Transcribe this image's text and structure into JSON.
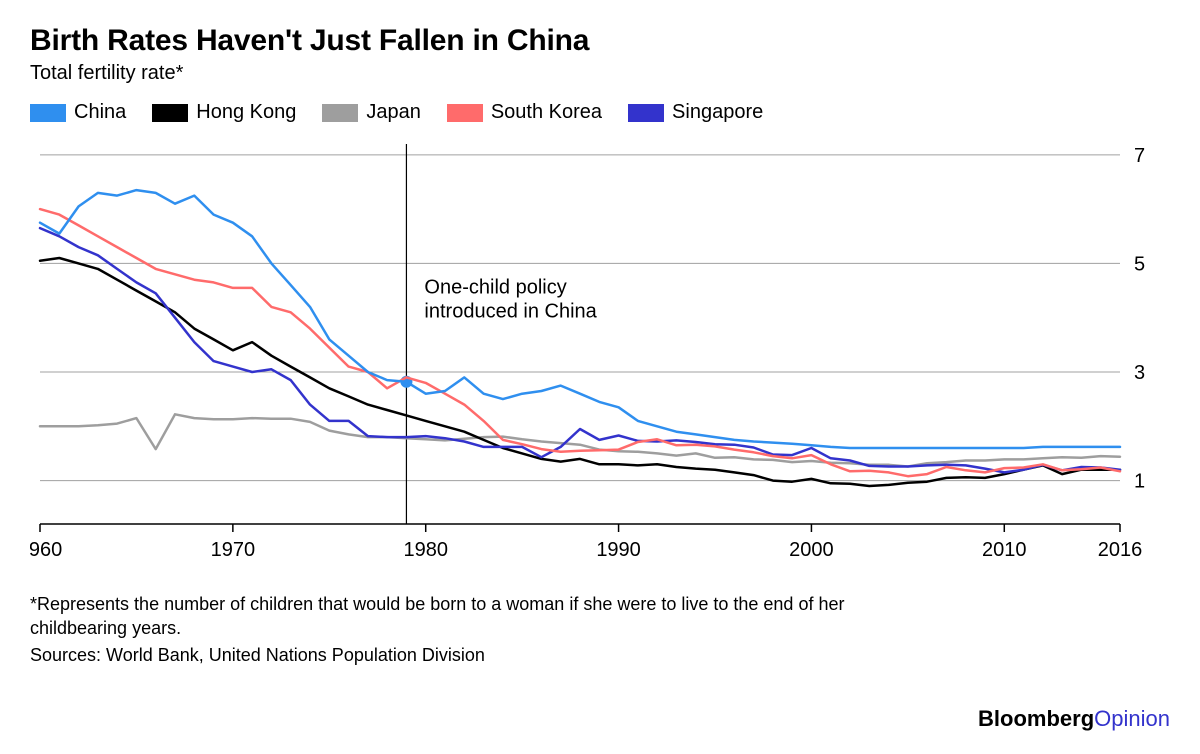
{
  "title": "Birth Rates Haven't Just Fallen in China",
  "subtitle": "Total fertility rate*",
  "footnote": "*Represents the number of children that would be born to a woman if she were to live to the end of her childbearing years.",
  "sources": "Sources: World Bank, United Nations Population Division",
  "brand_main": "Bloomberg",
  "brand_sub": "Opinion",
  "annotation": {
    "year": 1979,
    "label_line1": "One-child policy",
    "label_line2": "introduced in China",
    "marker_y": 2.82
  },
  "chart": {
    "type": "line",
    "background_color": "#ffffff",
    "grid_color": "#a0a0a0",
    "axis_color": "#000000",
    "text_color": "#000000",
    "label_fontsize": 20,
    "annotation_fontsize": 20,
    "line_width": 2.5,
    "marker_radius": 6,
    "marker_color": "#2f8fef",
    "annotation_line_color": "#000000",
    "x": {
      "min": 1960,
      "max": 2016,
      "ticks": [
        1960,
        1970,
        1980,
        1990,
        2000,
        2010,
        2016
      ]
    },
    "y": {
      "min": 0.2,
      "max": 7.2,
      "ticks": [
        1,
        3,
        5,
        7
      ]
    },
    "series": [
      {
        "name": "China",
        "color": "#2f8fef",
        "data": [
          [
            1960,
            5.75
          ],
          [
            1961,
            5.55
          ],
          [
            1962,
            6.05
          ],
          [
            1963,
            6.3
          ],
          [
            1964,
            6.25
          ],
          [
            1965,
            6.35
          ],
          [
            1966,
            6.3
          ],
          [
            1967,
            6.1
          ],
          [
            1968,
            6.25
          ],
          [
            1969,
            5.9
          ],
          [
            1970,
            5.75
          ],
          [
            1971,
            5.5
          ],
          [
            1972,
            5.0
          ],
          [
            1973,
            4.6
          ],
          [
            1974,
            4.2
          ],
          [
            1975,
            3.6
          ],
          [
            1976,
            3.3
          ],
          [
            1977,
            3.0
          ],
          [
            1978,
            2.85
          ],
          [
            1979,
            2.82
          ],
          [
            1980,
            2.6
          ],
          [
            1981,
            2.65
          ],
          [
            1982,
            2.9
          ],
          [
            1983,
            2.6
          ],
          [
            1984,
            2.5
          ],
          [
            1985,
            2.6
          ],
          [
            1986,
            2.65
          ],
          [
            1987,
            2.75
          ],
          [
            1988,
            2.6
          ],
          [
            1989,
            2.45
          ],
          [
            1990,
            2.35
          ],
          [
            1991,
            2.1
          ],
          [
            1992,
            2.0
          ],
          [
            1993,
            1.9
          ],
          [
            1994,
            1.85
          ],
          [
            1995,
            1.8
          ],
          [
            1996,
            1.75
          ],
          [
            1997,
            1.72
          ],
          [
            1998,
            1.7
          ],
          [
            1999,
            1.68
          ],
          [
            2000,
            1.65
          ],
          [
            2001,
            1.62
          ],
          [
            2002,
            1.6
          ],
          [
            2003,
            1.6
          ],
          [
            2004,
            1.6
          ],
          [
            2005,
            1.6
          ],
          [
            2006,
            1.6
          ],
          [
            2007,
            1.6
          ],
          [
            2008,
            1.6
          ],
          [
            2009,
            1.6
          ],
          [
            2010,
            1.6
          ],
          [
            2011,
            1.6
          ],
          [
            2012,
            1.62
          ],
          [
            2013,
            1.62
          ],
          [
            2014,
            1.62
          ],
          [
            2015,
            1.62
          ],
          [
            2016,
            1.62
          ]
        ]
      },
      {
        "name": "Hong Kong",
        "color": "#000000",
        "data": [
          [
            1960,
            5.05
          ],
          [
            1961,
            5.1
          ],
          [
            1962,
            5.0
          ],
          [
            1963,
            4.9
          ],
          [
            1964,
            4.7
          ],
          [
            1965,
            4.5
          ],
          [
            1966,
            4.3
          ],
          [
            1967,
            4.1
          ],
          [
            1968,
            3.8
          ],
          [
            1969,
            3.6
          ],
          [
            1970,
            3.4
          ],
          [
            1971,
            3.55
          ],
          [
            1972,
            3.3
          ],
          [
            1973,
            3.1
          ],
          [
            1974,
            2.9
          ],
          [
            1975,
            2.7
          ],
          [
            1976,
            2.55
          ],
          [
            1977,
            2.4
          ],
          [
            1978,
            2.3
          ],
          [
            1979,
            2.2
          ],
          [
            1980,
            2.1
          ],
          [
            1981,
            2.0
          ],
          [
            1982,
            1.9
          ],
          [
            1983,
            1.75
          ],
          [
            1984,
            1.6
          ],
          [
            1985,
            1.5
          ],
          [
            1986,
            1.4
          ],
          [
            1987,
            1.35
          ],
          [
            1988,
            1.4
          ],
          [
            1989,
            1.3
          ],
          [
            1990,
            1.3
          ],
          [
            1991,
            1.28
          ],
          [
            1992,
            1.3
          ],
          [
            1993,
            1.25
          ],
          [
            1994,
            1.22
          ],
          [
            1995,
            1.2
          ],
          [
            1996,
            1.15
          ],
          [
            1997,
            1.1
          ],
          [
            1998,
            1.0
          ],
          [
            1999,
            0.98
          ],
          [
            2000,
            1.03
          ],
          [
            2001,
            0.95
          ],
          [
            2002,
            0.94
          ],
          [
            2003,
            0.9
          ],
          [
            2004,
            0.92
          ],
          [
            2005,
            0.96
          ],
          [
            2006,
            0.98
          ],
          [
            2007,
            1.05
          ],
          [
            2008,
            1.06
          ],
          [
            2009,
            1.05
          ],
          [
            2010,
            1.12
          ],
          [
            2011,
            1.2
          ],
          [
            2012,
            1.28
          ],
          [
            2013,
            1.12
          ],
          [
            2014,
            1.2
          ],
          [
            2015,
            1.2
          ],
          [
            2016,
            1.2
          ]
        ]
      },
      {
        "name": "Japan",
        "color": "#9e9e9e",
        "data": [
          [
            1960,
            2.0
          ],
          [
            1961,
            2.0
          ],
          [
            1962,
            2.0
          ],
          [
            1963,
            2.02
          ],
          [
            1964,
            2.05
          ],
          [
            1965,
            2.15
          ],
          [
            1966,
            1.58
          ],
          [
            1967,
            2.22
          ],
          [
            1968,
            2.15
          ],
          [
            1969,
            2.13
          ],
          [
            1970,
            2.13
          ],
          [
            1971,
            2.15
          ],
          [
            1972,
            2.14
          ],
          [
            1973,
            2.14
          ],
          [
            1974,
            2.08
          ],
          [
            1975,
            1.92
          ],
          [
            1976,
            1.85
          ],
          [
            1977,
            1.8
          ],
          [
            1978,
            1.8
          ],
          [
            1979,
            1.78
          ],
          [
            1980,
            1.76
          ],
          [
            1981,
            1.74
          ],
          [
            1982,
            1.77
          ],
          [
            1983,
            1.8
          ],
          [
            1984,
            1.81
          ],
          [
            1985,
            1.76
          ],
          [
            1986,
            1.72
          ],
          [
            1987,
            1.69
          ],
          [
            1988,
            1.66
          ],
          [
            1989,
            1.57
          ],
          [
            1990,
            1.54
          ],
          [
            1991,
            1.53
          ],
          [
            1992,
            1.5
          ],
          [
            1993,
            1.46
          ],
          [
            1994,
            1.5
          ],
          [
            1995,
            1.42
          ],
          [
            1996,
            1.43
          ],
          [
            1997,
            1.39
          ],
          [
            1998,
            1.38
          ],
          [
            1999,
            1.34
          ],
          [
            2000,
            1.36
          ],
          [
            2001,
            1.33
          ],
          [
            2002,
            1.32
          ],
          [
            2003,
            1.29
          ],
          [
            2004,
            1.29
          ],
          [
            2005,
            1.26
          ],
          [
            2006,
            1.32
          ],
          [
            2007,
            1.34
          ],
          [
            2008,
            1.37
          ],
          [
            2009,
            1.37
          ],
          [
            2010,
            1.39
          ],
          [
            2011,
            1.39
          ],
          [
            2012,
            1.41
          ],
          [
            2013,
            1.43
          ],
          [
            2014,
            1.42
          ],
          [
            2015,
            1.45
          ],
          [
            2016,
            1.44
          ]
        ]
      },
      {
        "name": "South Korea",
        "color": "#ff6b6b",
        "data": [
          [
            1960,
            6.0
          ],
          [
            1961,
            5.9
          ],
          [
            1962,
            5.7
          ],
          [
            1963,
            5.5
          ],
          [
            1964,
            5.3
          ],
          [
            1965,
            5.1
          ],
          [
            1966,
            4.9
          ],
          [
            1967,
            4.8
          ],
          [
            1968,
            4.7
          ],
          [
            1969,
            4.65
          ],
          [
            1970,
            4.55
          ],
          [
            1971,
            4.55
          ],
          [
            1972,
            4.2
          ],
          [
            1973,
            4.1
          ],
          [
            1974,
            3.8
          ],
          [
            1975,
            3.45
          ],
          [
            1976,
            3.1
          ],
          [
            1977,
            3.0
          ],
          [
            1978,
            2.7
          ],
          [
            1979,
            2.9
          ],
          [
            1980,
            2.8
          ],
          [
            1981,
            2.6
          ],
          [
            1982,
            2.4
          ],
          [
            1983,
            2.1
          ],
          [
            1984,
            1.75
          ],
          [
            1985,
            1.67
          ],
          [
            1986,
            1.58
          ],
          [
            1987,
            1.53
          ],
          [
            1988,
            1.55
          ],
          [
            1989,
            1.56
          ],
          [
            1990,
            1.57
          ],
          [
            1991,
            1.71
          ],
          [
            1992,
            1.76
          ],
          [
            1993,
            1.65
          ],
          [
            1994,
            1.66
          ],
          [
            1995,
            1.63
          ],
          [
            1996,
            1.57
          ],
          [
            1997,
            1.52
          ],
          [
            1998,
            1.45
          ],
          [
            1999,
            1.41
          ],
          [
            2000,
            1.47
          ],
          [
            2001,
            1.3
          ],
          [
            2002,
            1.17
          ],
          [
            2003,
            1.18
          ],
          [
            2004,
            1.15
          ],
          [
            2005,
            1.08
          ],
          [
            2006,
            1.12
          ],
          [
            2007,
            1.25
          ],
          [
            2008,
            1.19
          ],
          [
            2009,
            1.15
          ],
          [
            2010,
            1.23
          ],
          [
            2011,
            1.24
          ],
          [
            2012,
            1.3
          ],
          [
            2013,
            1.19
          ],
          [
            2014,
            1.21
          ],
          [
            2015,
            1.24
          ],
          [
            2016,
            1.17
          ]
        ]
      },
      {
        "name": "Singapore",
        "color": "#3333cc",
        "data": [
          [
            1960,
            5.65
          ],
          [
            1961,
            5.5
          ],
          [
            1962,
            5.3
          ],
          [
            1963,
            5.15
          ],
          [
            1964,
            4.9
          ],
          [
            1965,
            4.65
          ],
          [
            1966,
            4.45
          ],
          [
            1967,
            4.0
          ],
          [
            1968,
            3.55
          ],
          [
            1969,
            3.2
          ],
          [
            1970,
            3.1
          ],
          [
            1971,
            3.0
          ],
          [
            1972,
            3.05
          ],
          [
            1973,
            2.85
          ],
          [
            1974,
            2.4
          ],
          [
            1975,
            2.1
          ],
          [
            1976,
            2.1
          ],
          [
            1977,
            1.82
          ],
          [
            1978,
            1.8
          ],
          [
            1979,
            1.8
          ],
          [
            1980,
            1.82
          ],
          [
            1981,
            1.78
          ],
          [
            1982,
            1.72
          ],
          [
            1983,
            1.62
          ],
          [
            1984,
            1.62
          ],
          [
            1985,
            1.62
          ],
          [
            1986,
            1.43
          ],
          [
            1987,
            1.62
          ],
          [
            1988,
            1.95
          ],
          [
            1989,
            1.75
          ],
          [
            1990,
            1.83
          ],
          [
            1991,
            1.73
          ],
          [
            1992,
            1.72
          ],
          [
            1993,
            1.74
          ],
          [
            1994,
            1.71
          ],
          [
            1995,
            1.67
          ],
          [
            1996,
            1.66
          ],
          [
            1997,
            1.61
          ],
          [
            1998,
            1.48
          ],
          [
            1999,
            1.47
          ],
          [
            2000,
            1.6
          ],
          [
            2001,
            1.41
          ],
          [
            2002,
            1.37
          ],
          [
            2003,
            1.27
          ],
          [
            2004,
            1.26
          ],
          [
            2005,
            1.26
          ],
          [
            2006,
            1.28
          ],
          [
            2007,
            1.29
          ],
          [
            2008,
            1.28
          ],
          [
            2009,
            1.22
          ],
          [
            2010,
            1.15
          ],
          [
            2011,
            1.2
          ],
          [
            2012,
            1.29
          ],
          [
            2013,
            1.19
          ],
          [
            2014,
            1.25
          ],
          [
            2015,
            1.24
          ],
          [
            2016,
            1.2
          ]
        ]
      }
    ]
  }
}
